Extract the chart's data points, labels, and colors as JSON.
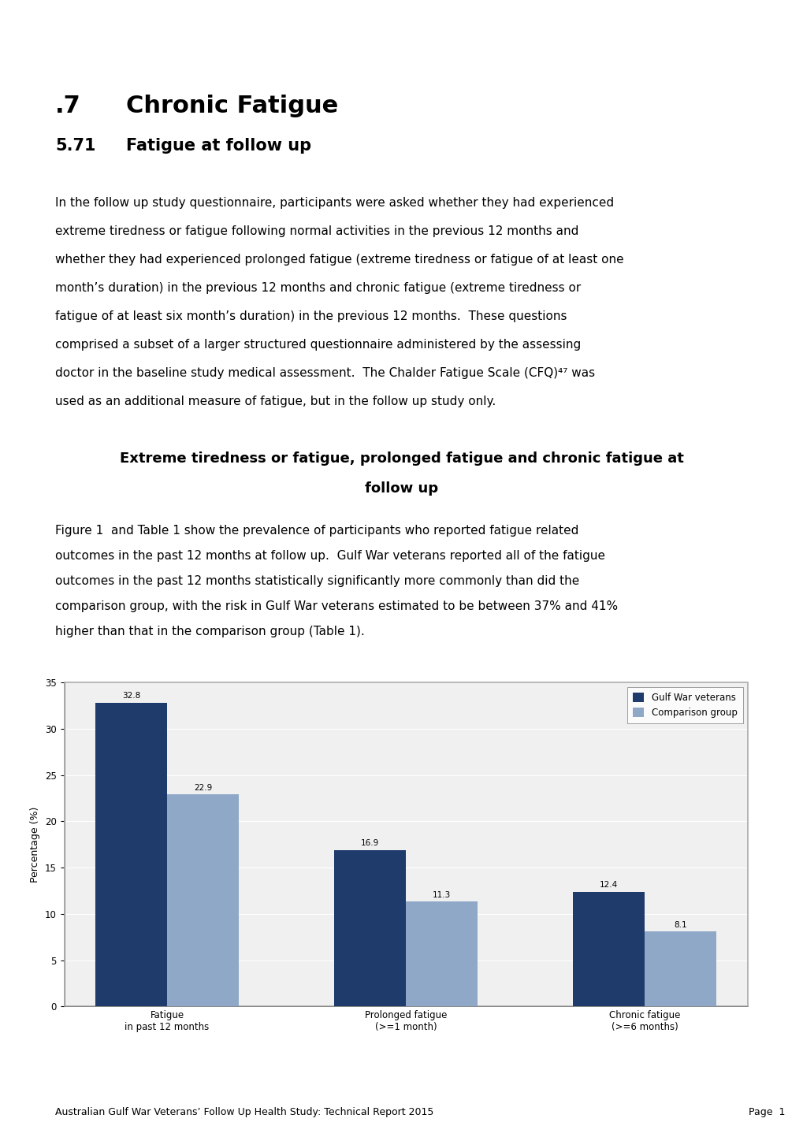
{
  "heading1": ".7",
  "heading1_tab": "        Chronic Fatigue",
  "heading2": "5.71",
  "heading2_tab": "    Fatigue at follow up",
  "body_lines": [
    "In the follow up study questionnaire, participants were asked whether they had experienced",
    "extreme tiredness or fatigue following normal activities in the previous 12 months and",
    "whether they had experienced prolonged fatigue (extreme tiredness or fatigue of at least one",
    "month’s duration) in the previous 12 months and chronic fatigue (extreme tiredness or",
    "fatigue of at least six month’s duration) in the previous 12 months.  These questions",
    "comprised a subset of a larger structured questionnaire administered by the assessing",
    "doctor in the baseline study medical assessment.  The Chalder Fatigue Scale (CFQ)⁴⁷ was",
    "used as an additional measure of fatigue, but in the follow up study only."
  ],
  "section_line1": "Extreme tiredness or fatigue, prolonged fatigue and chronic fatigue at",
  "section_line2": "follow up",
  "figure_lines": [
    "Figure 1  and Table 1 show the prevalence of participants who reported fatigue related",
    "outcomes in the past 12 months at follow up.  Gulf War veterans reported all of the fatigue",
    "outcomes in the past 12 months statistically significantly more commonly than did the",
    "comparison group, with the risk in Gulf War veterans estimated to be between 37% and 41%",
    "higher than that in the comparison group (Table 1)."
  ],
  "categories": [
    "Fatigue\nin past 12 months",
    "Prolonged fatigue\n(>=1 month)",
    "Chronic fatigue\n(>=6 months)"
  ],
  "gulf_war_values": [
    32.8,
    16.9,
    12.4
  ],
  "comparison_values": [
    22.9,
    11.3,
    8.1
  ],
  "gulf_war_color": "#1F3B6B",
  "comparison_color": "#8FA8C8",
  "chart_bg_color": "#F0F0F0",
  "ylabel": "Percentage (%)",
  "ylim": [
    0,
    35
  ],
  "yticks": [
    0,
    5,
    10,
    15,
    20,
    25,
    30,
    35
  ],
  "legend_gulf": "Gulf War veterans",
  "legend_comparison": "Comparison group",
  "footer_text": "Australian Gulf War Veterans’ Follow Up Health Study: Technical Report 2015",
  "footer_page": "Page  1",
  "background_color": "#ffffff"
}
